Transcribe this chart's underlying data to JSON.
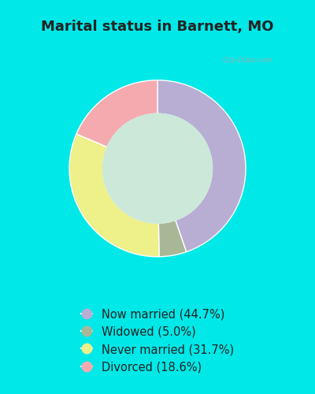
{
  "title": "Marital status in Barnett, MO",
  "categories": [
    "Now married",
    "Widowed",
    "Never married",
    "Divorced"
  ],
  "values": [
    44.7,
    5.0,
    31.7,
    18.6
  ],
  "colors": [
    "#b8aed4",
    "#a8b896",
    "#eef08a",
    "#f5aab0"
  ],
  "legend_labels": [
    "Now married (44.7%)",
    "Widowed (5.0%)",
    "Never married (31.7%)",
    "Divorced (18.6%)"
  ],
  "bg_cyan": "#00e8e8",
  "bg_chart": "#cce8d8",
  "title_fontsize": 13,
  "legend_fontsize": 10.5,
  "watermark": "City-Data.com",
  "title_color": "#222222",
  "legend_text_color": "#222222"
}
